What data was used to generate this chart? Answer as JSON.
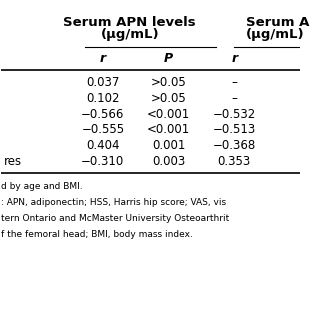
{
  "col_headers_line1": [
    "",
    "Serum APN levels",
    "",
    "Serum A"
  ],
  "col_headers_line2": [
    "",
    "(μg/mL)",
    "",
    "(μg/mL)"
  ],
  "sub_headers": [
    "",
    "r",
    "P",
    "r"
  ],
  "rows": [
    [
      "",
      "0.037",
      ">0.05",
      "–"
    ],
    [
      "",
      "0.102",
      ">0.05",
      "–"
    ],
    [
      "",
      "−0.566",
      "<0.001",
      "−0.532"
    ],
    [
      "",
      "−0.555",
      "<0.001",
      "−0.513"
    ],
    [
      "",
      "0.404",
      "0.001",
      "−0.368"
    ],
    [
      "res",
      "−0.310",
      "0.003",
      "0.353"
    ]
  ],
  "footer_lines": [
    "d by age and BMI.",
    ": APN, adiponectin; HSS, Harris hip score; VAS, vis",
    "tern Ontario and McMaster University Osteoarthrit",
    "f the femoral head; BMI, body mass index."
  ],
  "bg_color": "#ffffff",
  "text_color": "#000000",
  "font_size": 8.5,
  "header_font_size": 9.5,
  "sub_header_font_size": 9.0
}
